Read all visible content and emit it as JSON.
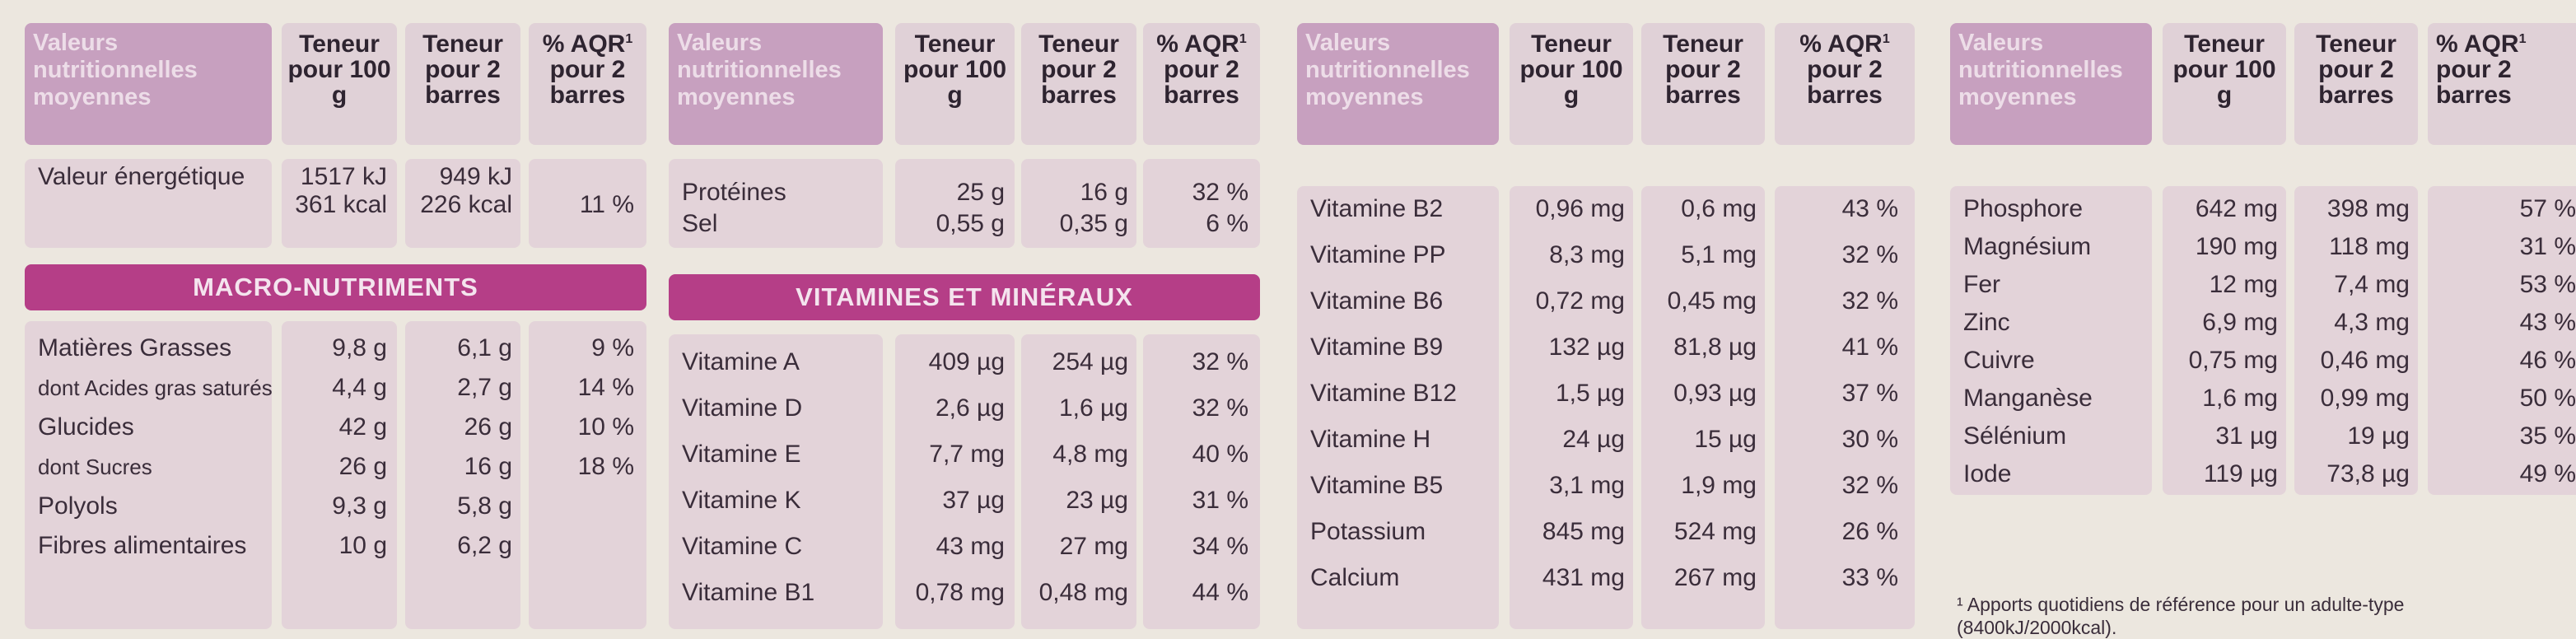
{
  "labels": {
    "header_label": "Valeurs nutritionnelles moyennes",
    "col1": "Teneur pour 100 g",
    "col2": "Teneur pour 2 barres",
    "col3_pre": "% AQR",
    "col3_sup": "1",
    "col3_post": "pour 2 barres",
    "macro_title": "MACRO-NUTRIMENTS",
    "vit_title": "VITAMINES ET MINÉRAUX",
    "footnote": "¹ Apports quotidiens de référence pour un adulte-type (8400kJ/2000kcal)."
  },
  "energy": {
    "name": "Valeur énergétique",
    "v100_kj": "1517 kJ",
    "v100_kcal": "361 kcal",
    "v2_kj": "949 kJ",
    "v2_kcal": "226 kcal",
    "aqr": "11 %"
  },
  "macro": [
    {
      "name": "Matières Grasses",
      "v100": "9,8 g",
      "v2": "6,1 g",
      "aqr": "9 %",
      "small": false
    },
    {
      "name": "dont Acides gras saturés",
      "v100": "4,4 g",
      "v2": "2,7 g",
      "aqr": "14 %",
      "small": true
    },
    {
      "name": "Glucides",
      "v100": "42 g",
      "v2": "26 g",
      "aqr": "10 %",
      "small": false
    },
    {
      "name": "dont Sucres",
      "v100": "26 g",
      "v2": "16 g",
      "aqr": "18 %",
      "small": true
    },
    {
      "name": "Polyols",
      "v100": "9,3 g",
      "v2": "5,8 g",
      "aqr": "",
      "small": false
    },
    {
      "name": "Fibres alimentaires",
      "v100": "10 g",
      "v2": "6,2 g",
      "aqr": "",
      "small": false
    }
  ],
  "panel2_top": [
    {
      "name": "Protéines",
      "v100": "25 g",
      "v2": "16 g",
      "aqr": "32 %"
    },
    {
      "name": "Sel",
      "v100": "0,55 g",
      "v2": "0,35 g",
      "aqr": "6 %"
    }
  ],
  "vitamins1": [
    {
      "name": "Vitamine A",
      "v100": "409 µg",
      "v2": "254 µg",
      "aqr": "32 %"
    },
    {
      "name": "Vitamine D",
      "v100": "2,6 µg",
      "v2": "1,6 µg",
      "aqr": "32 %"
    },
    {
      "name": "Vitamine E",
      "v100": "7,7 mg",
      "v2": "4,8 mg",
      "aqr": "40 %"
    },
    {
      "name": "Vitamine K",
      "v100": "37 µg",
      "v2": "23 µg",
      "aqr": "31 %"
    },
    {
      "name": "Vitamine C",
      "v100": "43 mg",
      "v2": "27 mg",
      "aqr": "34 %"
    },
    {
      "name": "Vitamine B1",
      "v100": "0,78 mg",
      "v2": "0,48 mg",
      "aqr": "44 %"
    }
  ],
  "vitamins2": [
    {
      "name": "Vitamine B2",
      "v100": "0,96 mg",
      "v2": "0,6 mg",
      "aqr": "43 %"
    },
    {
      "name": "Vitamine PP",
      "v100": "8,3 mg",
      "v2": "5,1 mg",
      "aqr": "32 %"
    },
    {
      "name": "Vitamine B6",
      "v100": "0,72 mg",
      "v2": "0,45 mg",
      "aqr": "32 %"
    },
    {
      "name": "Vitamine B9",
      "v100": "132 µg",
      "v2": "81,8 µg",
      "aqr": "41 %"
    },
    {
      "name": "Vitamine B12",
      "v100": "1,5 µg",
      "v2": "0,93 µg",
      "aqr": "37 %"
    },
    {
      "name": "Vitamine H",
      "v100": "24 µg",
      "v2": "15 µg",
      "aqr": "30 %"
    },
    {
      "name": "Vitamine B5",
      "v100": "3,1 mg",
      "v2": "1,9 mg",
      "aqr": "32 %"
    },
    {
      "name": "Potassium",
      "v100": "845 mg",
      "v2": "524 mg",
      "aqr": "26 %"
    },
    {
      "name": "Calcium",
      "v100": "431 mg",
      "v2": "267 mg",
      "aqr": "33 %"
    }
  ],
  "minerals": [
    {
      "name": "Phosphore",
      "v100": "642 mg",
      "v2": "398 mg",
      "aqr": "57 %"
    },
    {
      "name": "Magnésium",
      "v100": "190 mg",
      "v2": "118 mg",
      "aqr": "31 %"
    },
    {
      "name": "Fer",
      "v100": "12 mg",
      "v2": "7,4 mg",
      "aqr": "53 %"
    },
    {
      "name": "Zinc",
      "v100": "6,9 mg",
      "v2": "4,3 mg",
      "aqr": "43 %"
    },
    {
      "name": "Cuivre",
      "v100": "0,75 mg",
      "v2": "0,46 mg",
      "aqr": "46 %"
    },
    {
      "name": "Manganèse",
      "v100": "1,6 mg",
      "v2": "0,99 mg",
      "aqr": "50 %"
    },
    {
      "name": "Sélénium",
      "v100": "31 µg",
      "v2": "19 µg",
      "aqr": "35 %"
    },
    {
      "name": "Iode",
      "v100": "119 µg",
      "v2": "73,8 µg",
      "aqr": "49 %"
    }
  ]
}
